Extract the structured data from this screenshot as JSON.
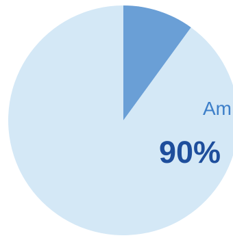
{
  "chart_data": {
    "type": "pie",
    "slices": [
      {
        "label": "",
        "value": 10,
        "color": "#6a9fd6"
      },
      {
        "label": "Am",
        "value": 90,
        "value_label": "90%",
        "color": "#d4e8f6"
      }
    ],
    "label_color": "#3d7fc9",
    "value_color": "#1e4e9c",
    "start_angle_deg": 0,
    "direction": "clockwise"
  }
}
